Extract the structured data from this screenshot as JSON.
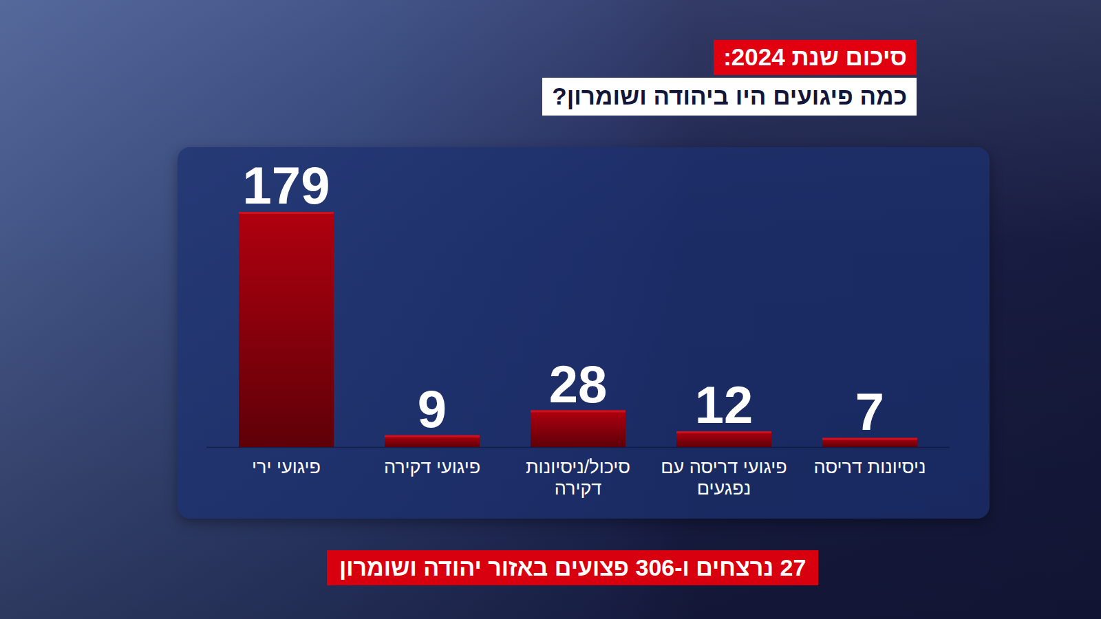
{
  "chart_data": {
    "type": "bar",
    "title": "סיכום שנת 2024:",
    "subtitle": "כמה פיגועים היו ביהודה ושומרון?",
    "annotation": "27 נרצחים ו-306 פצועים באזור יהודה ושומרון",
    "categories": [
      "פיגועי ירי",
      "פיגועי דקירה",
      "סיכול/ניסיונות דקירה",
      "פיגועי דריסה עם נפגעים",
      "ניסיונות דריסה"
    ],
    "values": [
      179,
      9,
      28,
      12,
      7
    ],
    "color": "#b0000f",
    "ylim": [
      0,
      179
    ],
    "data_labels": true,
    "tick_labels": false,
    "grid": false
  }
}
